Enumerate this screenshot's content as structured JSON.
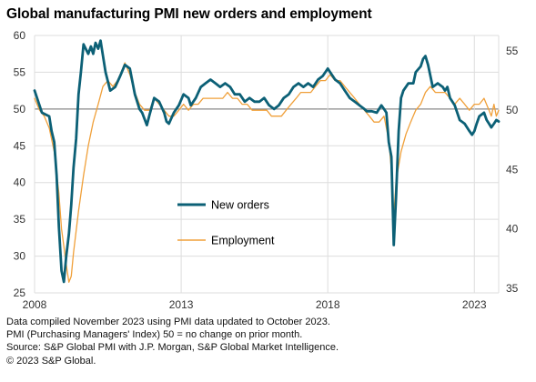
{
  "title": "Global manufacturing PMI new orders and employment",
  "notes": [
    "Data compiled November 2023 using PMI data updated to October 2023.",
    "PMI (Purchasing Managers' Index) 50 = no change on prior month.",
    "Source: S&P Global PMI with J.P. Morgan, S&P Global Market Intelligence.",
    "© 2023 S&P Global."
  ],
  "colors": {
    "new_orders": "#0c6076",
    "employment": "#f0a03a",
    "grid": "#dddddd",
    "fifty_line": "#888888"
  },
  "chart_data": {
    "type": "line",
    "title": "Global manufacturing PMI new orders and employment",
    "x_ticks": [
      "2008",
      "2013",
      "2018",
      "2023"
    ],
    "x_range": [
      2008.0,
      2023.83
    ],
    "left_axis": {
      "ticks": [
        25,
        30,
        35,
        40,
        45,
        50,
        55,
        60
      ],
      "ylim": [
        25,
        60
      ]
    },
    "right_axis": {
      "ticks": [
        35,
        40,
        45,
        50,
        55
      ],
      "ylim": [
        34.6,
        56.3
      ]
    },
    "grid": true,
    "legend": [
      "New orders",
      "Employment"
    ],
    "legend_placement": "center",
    "series": [
      {
        "name": "New orders",
        "axis": "left",
        "points": [
          [
            2008.0,
            52.5
          ],
          [
            2008.25,
            49.5
          ],
          [
            2008.5,
            49.0
          ],
          [
            2008.58,
            47.0
          ],
          [
            2008.67,
            45.5
          ],
          [
            2008.75,
            41.0
          ],
          [
            2008.83,
            34.0
          ],
          [
            2008.92,
            28.0
          ],
          [
            2009.0,
            26.5
          ],
          [
            2009.08,
            30.0
          ],
          [
            2009.17,
            33.0
          ],
          [
            2009.25,
            37.0
          ],
          [
            2009.33,
            42.0
          ],
          [
            2009.42,
            46.0
          ],
          [
            2009.5,
            52.0
          ],
          [
            2009.58,
            55.0
          ],
          [
            2009.67,
            58.8
          ],
          [
            2009.83,
            57.5
          ],
          [
            2009.92,
            58.5
          ],
          [
            2010.0,
            57.5
          ],
          [
            2010.08,
            59.0
          ],
          [
            2010.17,
            58.2
          ],
          [
            2010.25,
            59.3
          ],
          [
            2010.42,
            55.0
          ],
          [
            2010.58,
            52.5
          ],
          [
            2010.75,
            53.0
          ],
          [
            2010.92,
            54.5
          ],
          [
            2011.08,
            56.0
          ],
          [
            2011.25,
            55.5
          ],
          [
            2011.42,
            52.0
          ],
          [
            2011.58,
            50.0
          ],
          [
            2011.67,
            49.5
          ],
          [
            2011.83,
            47.8
          ],
          [
            2011.92,
            49.2
          ],
          [
            2012.08,
            51.5
          ],
          [
            2012.25,
            51.0
          ],
          [
            2012.42,
            49.5
          ],
          [
            2012.5,
            48.3
          ],
          [
            2012.58,
            48.0
          ],
          [
            2012.75,
            49.5
          ],
          [
            2012.92,
            50.5
          ],
          [
            2013.08,
            52.0
          ],
          [
            2013.25,
            51.5
          ],
          [
            2013.33,
            50.5
          ],
          [
            2013.5,
            51.5
          ],
          [
            2013.67,
            53.0
          ],
          [
            2013.83,
            53.5
          ],
          [
            2014.0,
            54.0
          ],
          [
            2014.17,
            53.5
          ],
          [
            2014.33,
            53.0
          ],
          [
            2014.5,
            53.5
          ],
          [
            2014.67,
            53.0
          ],
          [
            2014.83,
            52.0
          ],
          [
            2015.0,
            52.0
          ],
          [
            2015.17,
            51.0
          ],
          [
            2015.33,
            51.5
          ],
          [
            2015.5,
            51.0
          ],
          [
            2015.67,
            51.0
          ],
          [
            2015.83,
            51.5
          ],
          [
            2016.0,
            50.5
          ],
          [
            2016.17,
            50.0
          ],
          [
            2016.33,
            50.5
          ],
          [
            2016.5,
            51.5
          ],
          [
            2016.67,
            52.0
          ],
          [
            2016.83,
            53.0
          ],
          [
            2017.0,
            53.5
          ],
          [
            2017.17,
            53.0
          ],
          [
            2017.33,
            53.5
          ],
          [
            2017.5,
            53.0
          ],
          [
            2017.67,
            54.0
          ],
          [
            2017.83,
            54.5
          ],
          [
            2018.0,
            55.5
          ],
          [
            2018.08,
            55.0
          ],
          [
            2018.25,
            54.0
          ],
          [
            2018.42,
            53.5
          ],
          [
            2018.58,
            52.5
          ],
          [
            2018.75,
            51.5
          ],
          [
            2018.92,
            51.0
          ],
          [
            2019.08,
            50.5
          ],
          [
            2019.25,
            50.0
          ],
          [
            2019.33,
            49.7
          ],
          [
            2019.5,
            49.7
          ],
          [
            2019.67,
            49.5
          ],
          [
            2019.83,
            50.5
          ],
          [
            2019.92,
            50.0
          ],
          [
            2020.0,
            49.5
          ],
          [
            2020.08,
            45.5
          ],
          [
            2020.17,
            43.5
          ],
          [
            2020.25,
            31.5
          ],
          [
            2020.33,
            38.0
          ],
          [
            2020.42,
            47.0
          ],
          [
            2020.5,
            51.5
          ],
          [
            2020.58,
            52.5
          ],
          [
            2020.75,
            53.5
          ],
          [
            2020.92,
            53.5
          ],
          [
            2021.0,
            55.0
          ],
          [
            2021.17,
            55.8
          ],
          [
            2021.25,
            56.8
          ],
          [
            2021.33,
            57.2
          ],
          [
            2021.42,
            56.0
          ],
          [
            2021.58,
            53.0
          ],
          [
            2021.75,
            53.5
          ],
          [
            2021.92,
            53.0
          ],
          [
            2022.0,
            52.5
          ],
          [
            2022.08,
            53.0
          ],
          [
            2022.17,
            51.5
          ],
          [
            2022.33,
            50.5
          ],
          [
            2022.5,
            48.5
          ],
          [
            2022.67,
            48.0
          ],
          [
            2022.83,
            47.0
          ],
          [
            2022.92,
            46.5
          ],
          [
            2023.0,
            47.0
          ],
          [
            2023.08,
            48.0
          ],
          [
            2023.17,
            49.0
          ],
          [
            2023.33,
            49.5
          ],
          [
            2023.42,
            48.5
          ],
          [
            2023.5,
            48.0
          ],
          [
            2023.58,
            47.5
          ],
          [
            2023.67,
            48.0
          ],
          [
            2023.75,
            48.5
          ],
          [
            2023.83,
            48.3
          ]
        ]
      },
      {
        "name": "Employment",
        "axis": "right",
        "points": [
          [
            2008.0,
            51.0
          ],
          [
            2008.17,
            50.0
          ],
          [
            2008.33,
            49.5
          ],
          [
            2008.5,
            48.5
          ],
          [
            2008.67,
            46.5
          ],
          [
            2008.83,
            43.0
          ],
          [
            2008.92,
            40.0
          ],
          [
            2009.0,
            38.5
          ],
          [
            2009.08,
            37.0
          ],
          [
            2009.17,
            35.5
          ],
          [
            2009.25,
            36.0
          ],
          [
            2009.33,
            38.0
          ],
          [
            2009.5,
            41.5
          ],
          [
            2009.67,
            44.5
          ],
          [
            2009.83,
            47.0
          ],
          [
            2010.0,
            49.0
          ],
          [
            2010.17,
            50.5
          ],
          [
            2010.33,
            52.0
          ],
          [
            2010.5,
            52.5
          ],
          [
            2010.67,
            52.0
          ],
          [
            2010.83,
            52.5
          ],
          [
            2011.0,
            53.5
          ],
          [
            2011.08,
            54.0
          ],
          [
            2011.25,
            53.0
          ],
          [
            2011.42,
            51.5
          ],
          [
            2011.58,
            50.5
          ],
          [
            2011.75,
            50.0
          ],
          [
            2011.92,
            50.0
          ],
          [
            2012.08,
            51.0
          ],
          [
            2012.25,
            50.5
          ],
          [
            2012.42,
            50.0
          ],
          [
            2012.58,
            49.5
          ],
          [
            2012.75,
            49.5
          ],
          [
            2012.92,
            50.0
          ],
          [
            2013.08,
            50.5
          ],
          [
            2013.25,
            50.0
          ],
          [
            2013.42,
            50.5
          ],
          [
            2013.58,
            50.5
          ],
          [
            2013.75,
            51.0
          ],
          [
            2013.92,
            51.0
          ],
          [
            2014.08,
            51.0
          ],
          [
            2014.25,
            51.0
          ],
          [
            2014.42,
            51.0
          ],
          [
            2014.58,
            51.5
          ],
          [
            2014.75,
            51.0
          ],
          [
            2014.92,
            51.0
          ],
          [
            2015.08,
            50.5
          ],
          [
            2015.25,
            50.5
          ],
          [
            2015.42,
            50.0
          ],
          [
            2015.58,
            50.0
          ],
          [
            2015.75,
            50.0
          ],
          [
            2015.92,
            50.0
          ],
          [
            2016.08,
            49.5
          ],
          [
            2016.25,
            49.5
          ],
          [
            2016.42,
            49.5
          ],
          [
            2016.58,
            50.0
          ],
          [
            2016.75,
            50.5
          ],
          [
            2016.92,
            51.0
          ],
          [
            2017.08,
            51.5
          ],
          [
            2017.25,
            51.5
          ],
          [
            2017.42,
            51.5
          ],
          [
            2017.58,
            52.0
          ],
          [
            2017.75,
            52.5
          ],
          [
            2017.92,
            52.5
          ],
          [
            2018.08,
            53.0
          ],
          [
            2018.25,
            52.5
          ],
          [
            2018.42,
            52.5
          ],
          [
            2018.58,
            52.0
          ],
          [
            2018.75,
            51.5
          ],
          [
            2018.92,
            51.0
          ],
          [
            2019.08,
            50.5
          ],
          [
            2019.25,
            50.0
          ],
          [
            2019.42,
            49.5
          ],
          [
            2019.58,
            49.0
          ],
          [
            2019.75,
            49.0
          ],
          [
            2019.92,
            49.5
          ],
          [
            2020.08,
            47.5
          ],
          [
            2020.17,
            45.0
          ],
          [
            2020.25,
            41.0
          ],
          [
            2020.33,
            44.0
          ],
          [
            2020.5,
            46.5
          ],
          [
            2020.67,
            48.0
          ],
          [
            2020.83,
            49.0
          ],
          [
            2021.0,
            50.0
          ],
          [
            2021.17,
            50.5
          ],
          [
            2021.33,
            51.5
          ],
          [
            2021.5,
            52.0
          ],
          [
            2021.67,
            51.5
          ],
          [
            2021.83,
            51.5
          ],
          [
            2022.0,
            51.5
          ],
          [
            2022.17,
            51.0
          ],
          [
            2022.33,
            50.5
          ],
          [
            2022.5,
            51.0
          ],
          [
            2022.67,
            50.5
          ],
          [
            2022.83,
            50.0
          ],
          [
            2023.0,
            50.5
          ],
          [
            2023.17,
            50.5
          ],
          [
            2023.33,
            51.0
          ],
          [
            2023.5,
            50.0
          ],
          [
            2023.58,
            49.5
          ],
          [
            2023.67,
            50.5
          ],
          [
            2023.75,
            49.5
          ],
          [
            2023.83,
            50.0
          ]
        ]
      }
    ]
  }
}
